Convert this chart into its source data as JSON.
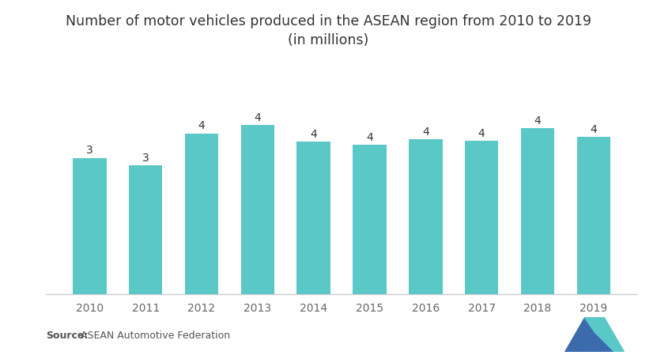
{
  "title_line1": "Number of motor vehicles produced in the ASEAN region from 2010 to 2019",
  "title_line2": "(in millions)",
  "categories": [
    "2010",
    "2011",
    "2012",
    "2013",
    "2014",
    "2015",
    "2016",
    "2017",
    "2018",
    "2019"
  ],
  "values": [
    3.17,
    3.0,
    3.74,
    3.93,
    3.55,
    3.47,
    3.6,
    3.57,
    3.86,
    3.66
  ],
  "bar_color": "#5BC8C8",
  "label_values": [
    "3",
    "3",
    "4",
    "4",
    "4",
    "4",
    "4",
    "4",
    "4",
    "4"
  ],
  "background_color": "#ffffff",
  "ylim": [
    0,
    5.0
  ],
  "source_bold": "Source:",
  "source_normal": " ASEAN Automotive Federation",
  "title_fontsize": 12.5,
  "label_fontsize": 10,
  "tick_fontsize": 10,
  "source_fontsize": 9,
  "bar_width": 0.6,
  "logo_blue": "#3B6BAD",
  "logo_teal": "#5BC8C8"
}
